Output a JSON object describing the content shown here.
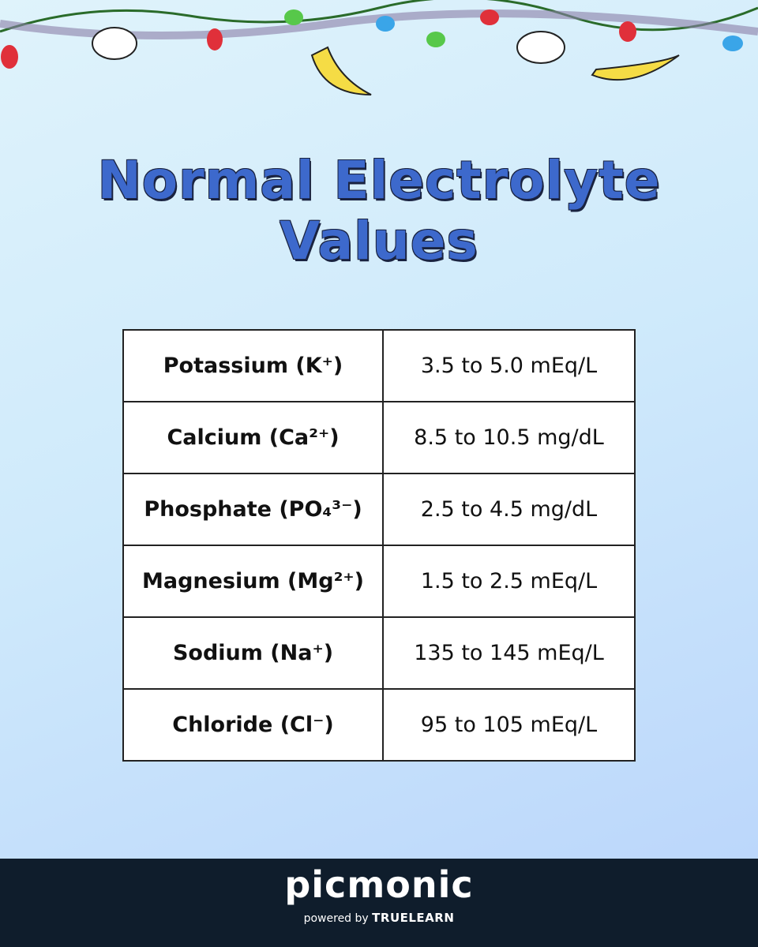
{
  "header": {
    "title": "Normal Electrolyte Values"
  },
  "table": {
    "rows": [
      [
        "Potassium (K⁺)",
        "3.5 to 5.0 mEq/L"
      ],
      [
        "Calcium (Ca²⁺)",
        "8.5 to 10.5 mg/dL"
      ],
      [
        "Phosphate (PO₄³⁻)",
        "2.5 to 4.5 mg/dL"
      ],
      [
        "Magnesium (Mg²⁺)",
        "1.5 to 2.5 mEq/L"
      ],
      [
        "Sodium (Na⁺)",
        "135 to 145 mEq/L"
      ],
      [
        "Chloride (Cl⁻)",
        "95 to 105 mEq/L"
      ]
    ]
  },
  "footer": {
    "brand": "picmonic",
    "powered": "powered by",
    "partner": "TRUELEARN"
  }
}
